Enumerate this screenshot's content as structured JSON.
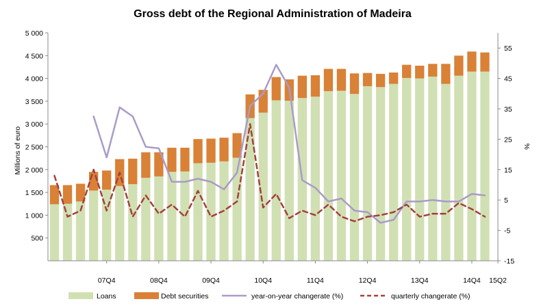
{
  "chart_data": {
    "type": "bar",
    "title": "Gross debt of the Regional Administration of Madeira",
    "ylabel": "Millions of euro",
    "y2label": "%",
    "ylim": [
      0,
      5000
    ],
    "y_ticks": [
      "500",
      "1 000",
      "1 500",
      "2 000",
      "2 500",
      "3 000",
      "3 500",
      "4 000",
      "4 500",
      "5 000"
    ],
    "y2lim": [
      -15,
      60
    ],
    "y2_ticks": [
      "-15",
      "-5",
      "5",
      "15",
      "25",
      "35",
      "45",
      "55"
    ],
    "x_tick_labels": [
      {
        "index": 4,
        "label": "07Q4"
      },
      {
        "index": 8,
        "label": "08Q4"
      },
      {
        "index": 12,
        "label": "09Q4"
      },
      {
        "index": 16,
        "label": "10Q4"
      },
      {
        "index": 20,
        "label": "11Q4"
      },
      {
        "index": 24,
        "label": "12Q4"
      },
      {
        "index": 28,
        "label": "13Q4"
      },
      {
        "index": 32,
        "label": "14Q4"
      },
      {
        "index": 34,
        "label": "15Q2"
      }
    ],
    "stacked": true,
    "legend_position": "bottom",
    "grid": false,
    "series": [
      {
        "name": "Loans",
        "kind": "bar",
        "axis": "left",
        "color": "#d1e0b3",
        "values": [
          1240,
          1250,
          1300,
          1540,
          1560,
          1640,
          1680,
          1820,
          1850,
          1950,
          1960,
          2140,
          2150,
          2180,
          2260,
          3130,
          3250,
          3520,
          3510,
          3570,
          3600,
          3720,
          3730,
          3660,
          3830,
          3810,
          3880,
          4010,
          4000,
          4040,
          3880,
          4060,
          4150,
          4150
        ]
      },
      {
        "name": "Debt securities",
        "kind": "bar",
        "axis": "left",
        "color": "#d98136",
        "values": [
          420,
          410,
          390,
          410,
          420,
          590,
          560,
          560,
          530,
          530,
          520,
          530,
          530,
          520,
          540,
          520,
          500,
          510,
          470,
          490,
          470,
          490,
          480,
          450,
          290,
          290,
          250,
          290,
          280,
          280,
          440,
          440,
          440,
          420
        ]
      },
      {
        "name": "year-on-year change rate (%)",
        "kind": "line",
        "axis": "right",
        "color": "#a99bc9",
        "dash": "solid",
        "values": [
          null,
          null,
          null,
          32.5,
          19,
          35.5,
          32.5,
          22.5,
          22,
          11,
          11,
          12,
          11,
          8.5,
          14,
          36,
          40,
          49.5,
          42,
          11.5,
          9,
          4.5,
          5.5,
          1.5,
          1,
          -2.5,
          -1.5,
          4.5,
          4.5,
          5,
          4.5,
          4.5,
          7,
          6.5
        ]
      },
      {
        "name": "quarterly change rate (%)",
        "kind": "line",
        "axis": "right",
        "color": "#a4403e",
        "dash": "dashed",
        "values": [
          13,
          -0.5,
          1.5,
          15,
          1.5,
          14,
          -0.5,
          6.5,
          0.5,
          3.5,
          -0.5,
          8,
          -0.5,
          1.5,
          4.5,
          30,
          2.5,
          7,
          -1,
          1.5,
          0,
          3.5,
          -0.5,
          -2,
          -0.5,
          0,
          1,
          3.5,
          -0.5,
          0.5,
          0.5,
          4,
          2,
          -0.5
        ]
      }
    ]
  },
  "legend": [
    {
      "label": "Loans",
      "symbol": "box",
      "color": "#d1e0b3"
    },
    {
      "label": "Debt securities",
      "symbol": "box",
      "color": "#d98136"
    },
    {
      "label": "year-on-year changerate (%)",
      "symbol": "line",
      "color": "#a99bc9"
    },
    {
      "label": "quarterly changerate (%)",
      "symbol": "dash",
      "color": "#a4403e"
    }
  ]
}
